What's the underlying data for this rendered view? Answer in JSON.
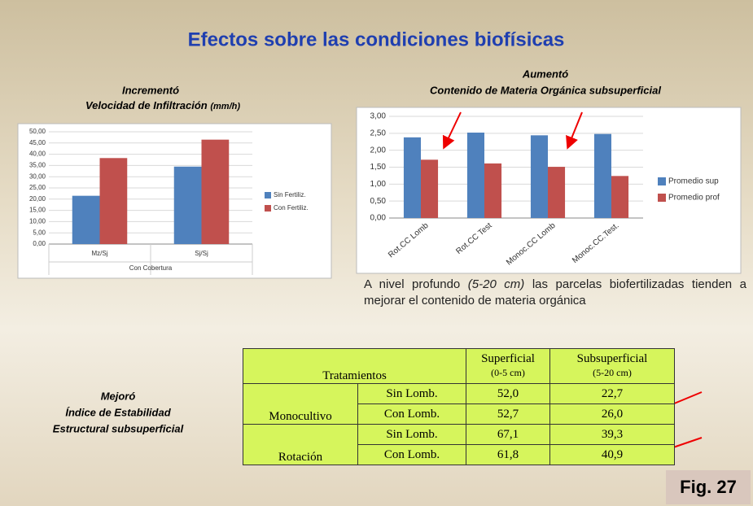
{
  "title": "Efectos sobre las condiciones biofísicas",
  "chart_data": [
    {
      "type": "bar",
      "title": [
        "Incrementó",
        "Velocidad de Infiltración"
      ],
      "unit_label": "(mm/h)",
      "categories": [
        "Mz/Sj",
        "Sj/Sj"
      ],
      "x_group_label": "Con Cobertura",
      "series": [
        {
          "name": "Sin Fertiliz.",
          "color": "#4f81bd",
          "values": [
            21.5,
            34.5
          ]
        },
        {
          "name": "Con Fertiliz.",
          "color": "#c0504d",
          "values": [
            38.3,
            46.5
          ]
        }
      ],
      "ylim": [
        0,
        50
      ],
      "yticks": [
        {
          "value": 0,
          "label": "0,00"
        },
        {
          "value": 5,
          "label": "5,00"
        },
        {
          "value": 10,
          "label": "10,00"
        },
        {
          "value": 15,
          "label": "15,00"
        },
        {
          "value": 20,
          "label": "20,00"
        },
        {
          "value": 25,
          "label": "25,00"
        },
        {
          "value": 30,
          "label": "30,00"
        },
        {
          "value": 35,
          "label": "35,00"
        },
        {
          "value": 40,
          "label": "40,00"
        },
        {
          "value": 45,
          "label": "45,00"
        },
        {
          "value": 50,
          "label": "50,00"
        }
      ],
      "grid": true,
      "legend": "right"
    },
    {
      "type": "bar",
      "title": [
        "Aumentó",
        "Contenido de Materia Orgánica subsuperficial"
      ],
      "categories": [
        "Rot.CC Lomb",
        "Rot.CC Test",
        "Monoc.CC Lomb",
        "Monoc.CC.Test."
      ],
      "series": [
        {
          "name": "Promedio sup",
          "color": "#4f81bd",
          "values": [
            2.38,
            2.52,
            2.44,
            2.48
          ]
        },
        {
          "name": "Promedio prof",
          "color": "#c0504d",
          "values": [
            1.72,
            1.61,
            1.51,
            1.24
          ]
        }
      ],
      "ylim": [
        0,
        3
      ],
      "yticks": [
        {
          "value": 0,
          "label": "0,00"
        },
        {
          "value": 0.5,
          "label": "0,50"
        },
        {
          "value": 1,
          "label": "1,00"
        },
        {
          "value": 1.5,
          "label": "1,50"
        },
        {
          "value": 2,
          "label": "2,00"
        },
        {
          "value": 2.5,
          "label": "2,50"
        },
        {
          "value": 3,
          "label": "3,00"
        }
      ],
      "grid": true,
      "legend": "right"
    }
  ],
  "paragraph": [
    "A nivel profundo ",
    "(5-20 cm)",
    " las parcelas biofertilizadas tienden a mejorar el contenido de materia orgánica"
  ],
  "side_text": [
    "Mejoró",
    "Índice de Estabilidad",
    "Estructural subsuperficial"
  ],
  "table": {
    "header": {
      "treatments": "Tratamientos",
      "col1": [
        "Superficial",
        "(0-5 cm)"
      ],
      "col2": [
        "Subsuperficial",
        "(5-20 cm)"
      ]
    },
    "groups": [
      {
        "name": "Monocultivo",
        "rows": [
          [
            "Sin Lomb.",
            "52,0",
            "22,7"
          ],
          [
            "Con Lomb.",
            "52,7",
            "26,0"
          ]
        ]
      },
      {
        "name": "Rotación",
        "rows": [
          [
            "Sin Lomb.",
            "67,1",
            "39,3"
          ],
          [
            "Con Lomb.",
            "61,8",
            "40,9"
          ]
        ]
      }
    ]
  },
  "figure_label": "Fig. 27"
}
